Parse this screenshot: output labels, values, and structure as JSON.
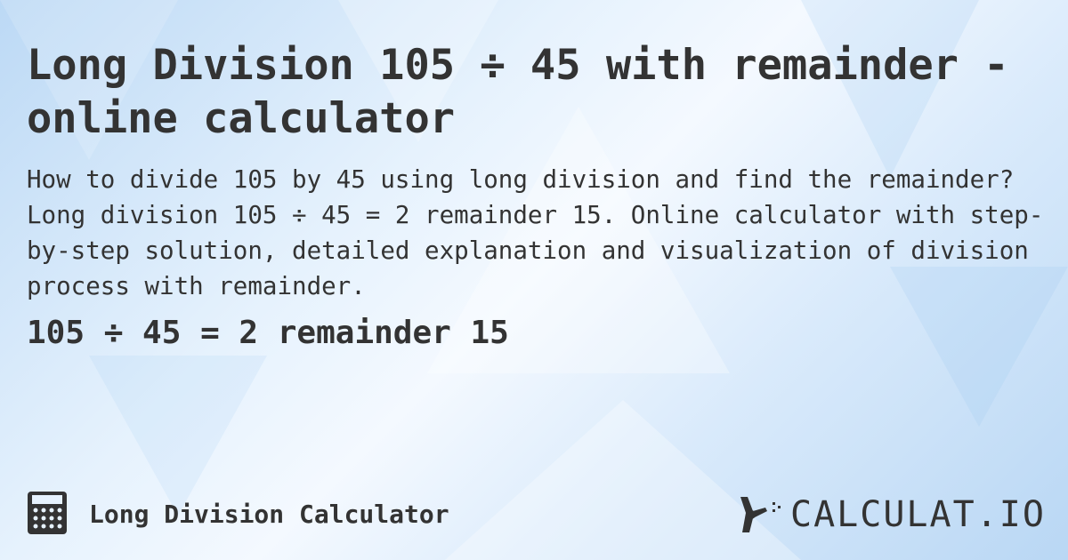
{
  "title": "Long Division 105 ÷ 45 with remainder - online calculator",
  "description": "How to divide 105 by 45 using long division and find the remainder? Long division 105 ÷ 45 = 2 remainder 15. Online calculator with step-by-step solution, detailed explanation and visualization of division process with remainder.",
  "result": "105 ÷ 45 = 2 remainder 15",
  "footer": {
    "calculator_name": "Long Division Calculator",
    "icon": "calculator-icon"
  },
  "logo": {
    "text": "CALCULAT.IO"
  },
  "colors": {
    "text": "#333333",
    "background": "#d9eafb"
  }
}
